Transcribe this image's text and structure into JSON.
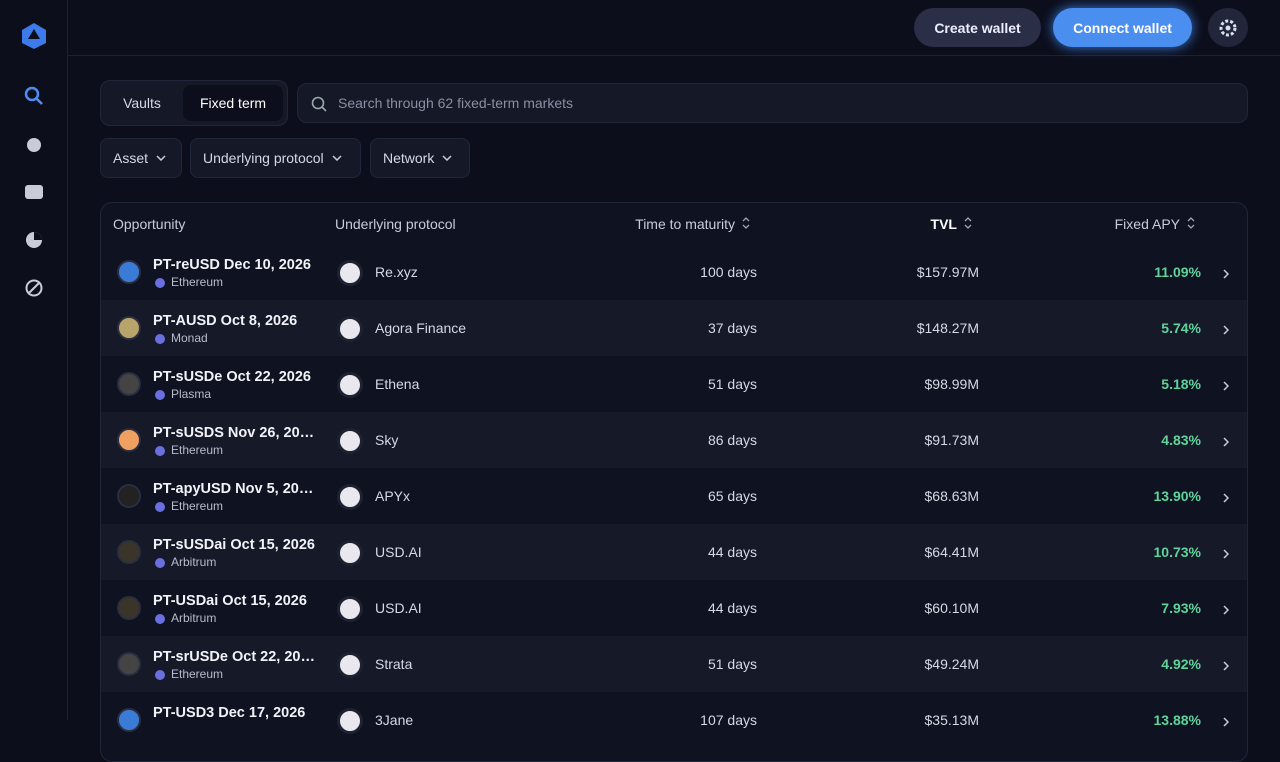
{
  "header": {
    "create_wallet": "Create wallet",
    "connect_wallet": "Connect wallet"
  },
  "tabs": [
    "Vaults",
    "Fixed term"
  ],
  "search_placeholder": "Search through 62 fixed-term markets",
  "filters": [
    "Asset",
    "Underlying protocol",
    "Network"
  ],
  "table": {
    "columns": [
      "Opportunity",
      "Underlying protocol",
      "Time to maturity",
      "TVL",
      "Fixed APY"
    ],
    "rows": [
      {
        "name": "PT-reUSD Dec 10, 2026",
        "network": "Ethereum",
        "protocol": "Re.xyz",
        "maturity": "100 days",
        "tvl": "$157.97M",
        "apy": "11.09%"
      },
      {
        "name": "PT-AUSD Oct 8, 2026",
        "network": "Monad",
        "protocol": "Agora Finance",
        "maturity": "37 days",
        "tvl": "$148.27M",
        "apy": "5.74%"
      },
      {
        "name": "PT-sUSDe Oct 22, 2026",
        "network": "Plasma",
        "protocol": "Ethena",
        "maturity": "51 days",
        "tvl": "$98.99M",
        "apy": "5.18%"
      },
      {
        "name": "PT-sUSDS Nov 26, 20…",
        "network": "Ethereum",
        "protocol": "Sky",
        "maturity": "86 days",
        "tvl": "$91.73M",
        "apy": "4.83%"
      },
      {
        "name": "PT-apyUSD Nov 5, 20…",
        "network": "Ethereum",
        "protocol": "APYx",
        "maturity": "65 days",
        "tvl": "$68.63M",
        "apy": "13.90%"
      },
      {
        "name": "PT-sUSDai Oct 15, 2026",
        "network": "Arbitrum",
        "protocol": "USD.AI",
        "maturity": "44 days",
        "tvl": "$64.41M",
        "apy": "10.73%"
      },
      {
        "name": "PT-USDai Oct 15, 2026",
        "network": "Arbitrum",
        "protocol": "USD.AI",
        "maturity": "44 days",
        "tvl": "$60.10M",
        "apy": "7.93%"
      },
      {
        "name": "PT-srUSDe Oct 22, 20…",
        "network": "Ethereum",
        "protocol": "Strata",
        "maturity": "51 days",
        "tvl": "$49.24M",
        "apy": "4.92%"
      },
      {
        "name": "PT-USD3 Dec 17, 2026",
        "protocol": "3Jane",
        "maturity": "107 days",
        "tvl": "$35.13M",
        "apy": "13.88%"
      }
    ]
  }
}
